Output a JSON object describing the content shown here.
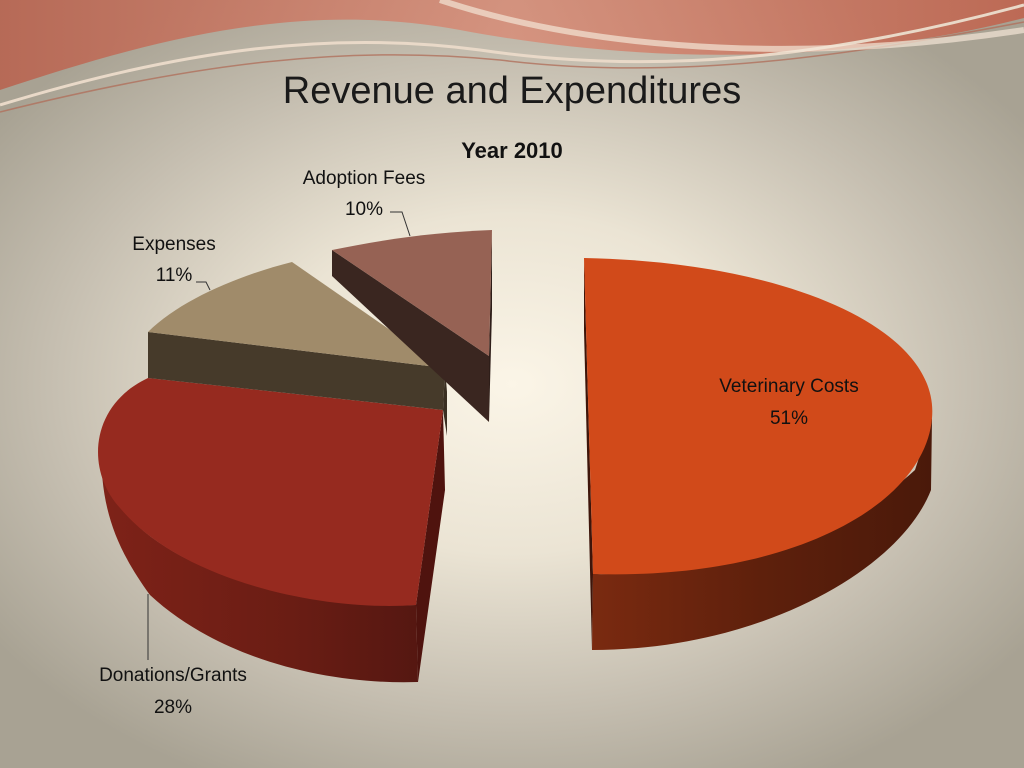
{
  "slide": {
    "title": "Revenue and Expenditures"
  },
  "colors": {
    "veterinary": "#d14a1a",
    "donations": "#962a1f",
    "expenses": "#a08b6a",
    "adoption": "#966254",
    "decor_band": "#c9735e"
  },
  "chart_data": {
    "type": "pie",
    "title": "Year 2010",
    "three_d": true,
    "exploded": true,
    "slices": [
      {
        "label": "Veterinary Costs",
        "value": 51,
        "value_label": "51%",
        "color": "#d14a1a"
      },
      {
        "label": "Donations/Grants",
        "value": 28,
        "value_label": "28%",
        "color": "#962a1f"
      },
      {
        "label": "Expenses",
        "value": 11,
        "value_label": "11%",
        "color": "#a08b6a"
      },
      {
        "label": "Adoption Fees",
        "value": 10,
        "value_label": "10%",
        "color": "#966254"
      }
    ]
  }
}
